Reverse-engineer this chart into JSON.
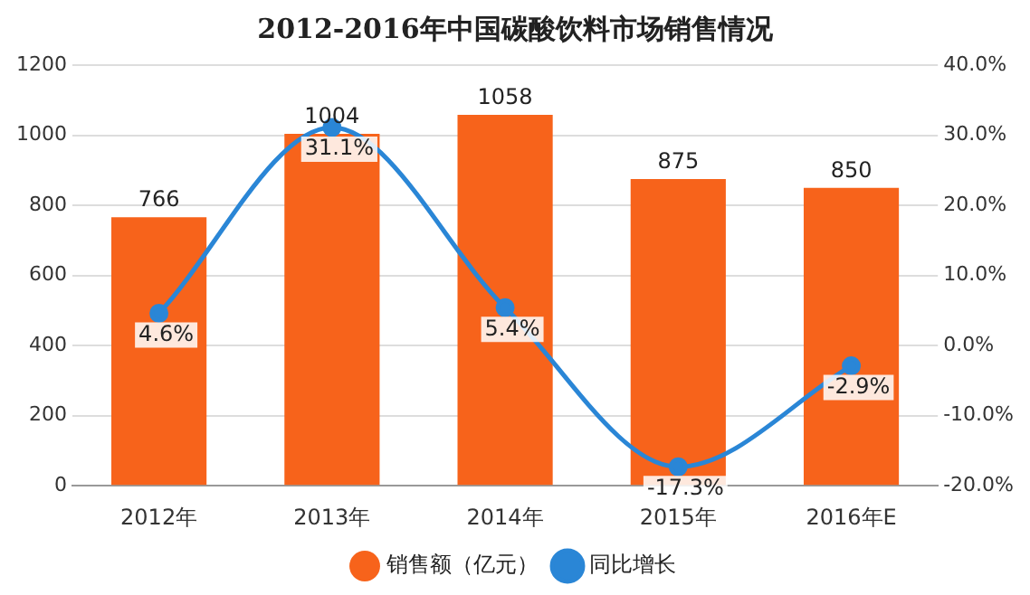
{
  "chart_data": {
    "type": "bar",
    "title": "2012-2016年中国碳酸饮料市场销售情况",
    "categories": [
      "2012年",
      "2013年",
      "2014年",
      "2015年",
      "2016年E"
    ],
    "series": [
      {
        "name": "销售额（亿元）",
        "color": "#f7631b",
        "values": [
          766,
          1004,
          1058,
          875,
          850
        ],
        "value_labels": [
          "766",
          "1004",
          "1058",
          "875",
          "850"
        ]
      },
      {
        "name": "同比增长",
        "type": "line",
        "axis": "y2",
        "color": "#2a86d6",
        "values": [
          4.6,
          31.1,
          5.4,
          -17.3,
          -2.9
        ],
        "value_labels": [
          "4.6%",
          "31.1%",
          "5.4%",
          "-17.3%",
          "-2.9%"
        ]
      }
    ],
    "ylim": [
      0,
      1200
    ],
    "yticks": [
      0,
      200,
      400,
      600,
      800,
      1000,
      1200
    ],
    "y2lim": [
      -20,
      40
    ],
    "y2ticks": [
      {
        "value": -20,
        "label": "-20.0%"
      },
      {
        "value": -10,
        "label": "-10.0%"
      },
      {
        "value": 0,
        "label": "0.0%"
      },
      {
        "value": 10,
        "label": "10.0%"
      },
      {
        "value": 20,
        "label": "20.0%"
      },
      {
        "value": 30,
        "label": "30.0%"
      },
      {
        "value": 40,
        "label": "40.0%"
      }
    ],
    "grid": "y",
    "legend": "bottom",
    "marker": "circle"
  }
}
